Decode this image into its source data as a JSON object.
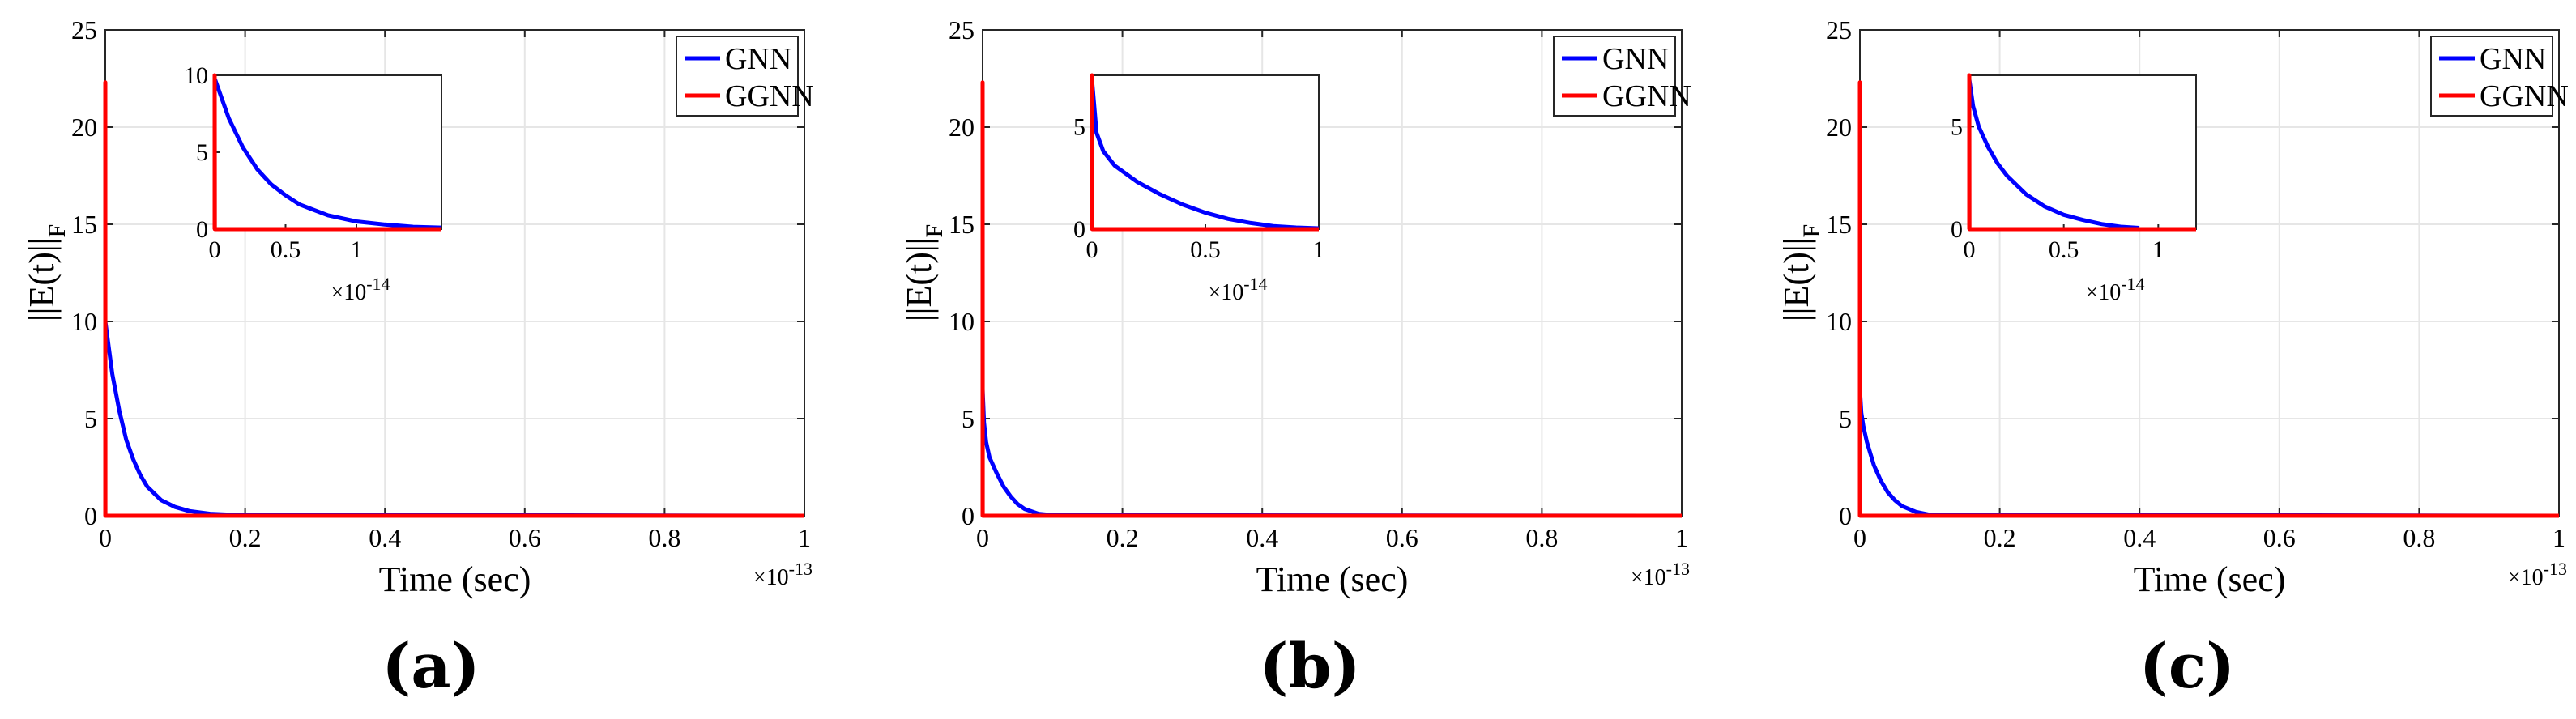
{
  "chart_data": [
    {
      "type": "line",
      "panel_label": "(a)",
      "xlabel": "Time (sec)",
      "ylabel": "||E(t)||F",
      "ylabel_main": "||E(t)||",
      "ylabel_sub": "F",
      "x_multiplier": "×10",
      "x_multiplier_exp": "-13",
      "xlim": [
        0,
        1
      ],
      "ylim": [
        0,
        25
      ],
      "xticks": [
        "0",
        "0.2",
        "0.4",
        "0.6",
        "0.8",
        "1"
      ],
      "yticks": [
        "0",
        "5",
        "10",
        "15",
        "20",
        "25"
      ],
      "grid": true,
      "legend_position": "top-right",
      "series": [
        {
          "name": "GNN",
          "color": "#0000ff",
          "x": [
            0,
            0.01,
            0.02,
            0.03,
            0.04,
            0.05,
            0.06,
            0.08,
            0.1,
            0.12,
            0.15,
            0.18,
            1
          ],
          "values": [
            10,
            7.3,
            5.4,
            3.9,
            2.9,
            2.1,
            1.5,
            0.8,
            0.45,
            0.24,
            0.1,
            0.05,
            0
          ]
        },
        {
          "name": "GGNN",
          "color": "#ff0000",
          "x": [
            0,
            0,
            0.0001,
            1
          ],
          "values": [
            0,
            22.3,
            0,
            0
          ]
        }
      ],
      "inset": {
        "xlim": [
          0,
          1.6
        ],
        "ylim": [
          0,
          10
        ],
        "xticks": [
          "0",
          "0.5",
          "1"
        ],
        "yticks": [
          "0",
          "5",
          "10"
        ],
        "x_multiplier": "×10",
        "x_multiplier_exp": "-14",
        "series": [
          {
            "name": "GNN",
            "x": [
              0,
              0.1,
              0.2,
              0.3,
              0.4,
              0.5,
              0.6,
              0.8,
              1.0,
              1.2,
              1.4,
              1.6
            ],
            "values": [
              9.8,
              7.2,
              5.3,
              3.9,
              2.9,
              2.2,
              1.6,
              0.9,
              0.5,
              0.3,
              0.15,
              0.1
            ]
          },
          {
            "name": "GGNN",
            "x": [
              0,
              0,
              0.001,
              1.6
            ],
            "values": [
              0,
              10,
              0,
              0
            ]
          }
        ]
      }
    },
    {
      "type": "line",
      "panel_label": "(b)",
      "xlabel": "Time (sec)",
      "ylabel": "||E(t)||F",
      "ylabel_main": "||E(t)||",
      "ylabel_sub": "F",
      "x_multiplier": "×10",
      "x_multiplier_exp": "-13",
      "xlim": [
        0,
        1
      ],
      "ylim": [
        0,
        25
      ],
      "xticks": [
        "0",
        "0.2",
        "0.4",
        "0.6",
        "0.8",
        "1"
      ],
      "yticks": [
        "0",
        "5",
        "10",
        "15",
        "20",
        "25"
      ],
      "grid": true,
      "legend_position": "top-right",
      "series": [
        {
          "name": "GNN",
          "color": "#0000ff",
          "x": [
            0,
            0.002,
            0.005,
            0.01,
            0.02,
            0.03,
            0.04,
            0.05,
            0.06,
            0.08,
            0.1,
            1
          ],
          "values": [
            6.5,
            4.8,
            3.8,
            3.0,
            2.2,
            1.5,
            1.0,
            0.6,
            0.35,
            0.1,
            0.03,
            0
          ]
        },
        {
          "name": "GGNN",
          "color": "#ff0000",
          "x": [
            0,
            0,
            0.0001,
            1
          ],
          "values": [
            0,
            22.3,
            0,
            0
          ]
        }
      ],
      "inset": {
        "xlim": [
          0,
          1
        ],
        "ylim": [
          0,
          7.5
        ],
        "xticks": [
          "0",
          "0.5",
          "1"
        ],
        "yticks": [
          "0",
          "5"
        ],
        "x_multiplier": "×10",
        "x_multiplier_exp": "-14",
        "series": [
          {
            "name": "GNN",
            "x": [
              0,
              0.02,
              0.05,
              0.1,
              0.15,
              0.2,
              0.3,
              0.4,
              0.5,
              0.6,
              0.7,
              0.8,
              0.9,
              1.0
            ],
            "values": [
              7.3,
              4.7,
              3.8,
              3.1,
              2.7,
              2.3,
              1.7,
              1.2,
              0.8,
              0.5,
              0.3,
              0.15,
              0.08,
              0.04
            ]
          },
          {
            "name": "GGNN",
            "x": [
              0,
              0,
              0.001,
              1
            ],
            "values": [
              0,
              7.5,
              0,
              0
            ]
          }
        ]
      }
    },
    {
      "type": "line",
      "panel_label": "(c)",
      "xlabel": "Time (sec)",
      "ylabel": "||E(t)||F",
      "ylabel_main": "||E(t)||",
      "ylabel_sub": "F",
      "x_multiplier": "×10",
      "x_multiplier_exp": "-13",
      "xlim": [
        0,
        1
      ],
      "ylim": [
        0,
        25
      ],
      "xticks": [
        "0",
        "0.2",
        "0.4",
        "0.6",
        "0.8",
        "1"
      ],
      "yticks": [
        "0",
        "5",
        "10",
        "15",
        "20",
        "25"
      ],
      "grid": true,
      "legend_position": "top-right",
      "series": [
        {
          "name": "GNN",
          "color": "#0000ff",
          "x": [
            0,
            0.002,
            0.005,
            0.01,
            0.02,
            0.03,
            0.04,
            0.05,
            0.06,
            0.08,
            0.1,
            1
          ],
          "values": [
            6.5,
            5.3,
            4.6,
            3.8,
            2.6,
            1.8,
            1.2,
            0.8,
            0.5,
            0.2,
            0.05,
            0
          ]
        },
        {
          "name": "GGNN",
          "color": "#ff0000",
          "x": [
            0,
            0,
            0.0001,
            1
          ],
          "values": [
            0,
            22.3,
            0,
            0
          ]
        }
      ],
      "inset": {
        "xlim": [
          0,
          1.2
        ],
        "ylim": [
          0,
          7.5
        ],
        "xticks": [
          "0",
          "0.5",
          "1"
        ],
        "yticks": [
          "0",
          "5"
        ],
        "x_multiplier": "×10",
        "x_multiplier_exp": "-14",
        "series": [
          {
            "name": "GNN",
            "x": [
              0,
              0.02,
              0.05,
              0.1,
              0.15,
              0.2,
              0.3,
              0.4,
              0.5,
              0.6,
              0.7,
              0.8,
              0.9
            ],
            "values": [
              7.3,
              6.0,
              5.0,
              4.0,
              3.2,
              2.6,
              1.7,
              1.1,
              0.7,
              0.45,
              0.25,
              0.12,
              0.06
            ]
          },
          {
            "name": "GGNN",
            "x": [
              0,
              0,
              0.001,
              1.2
            ],
            "values": [
              0,
              7.5,
              0,
              0
            ]
          }
        ]
      }
    }
  ]
}
